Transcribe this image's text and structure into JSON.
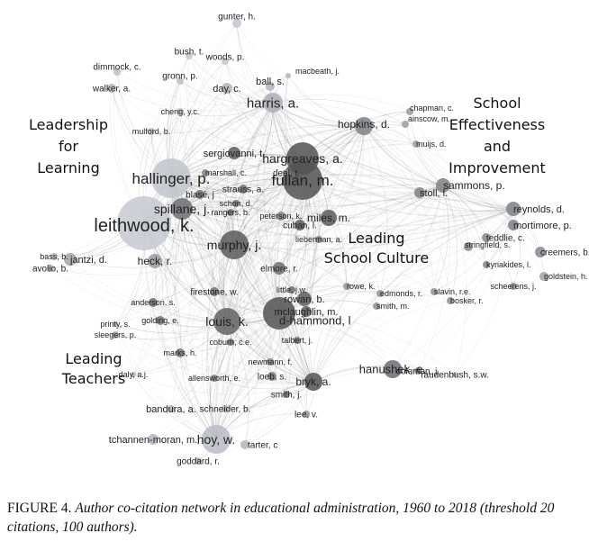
{
  "caption": {
    "figure_number": "FIGURE 4.",
    "text": "Author co-citation network in educational administration, 1960 to 2018 (threshold 20 citations, 100 authors)."
  },
  "colors": {
    "edge": "#8c8c8c",
    "node_dark": "#3a3a3a",
    "node_light": "#d8dde6"
  },
  "clusters": [
    {
      "id": "leadership-for-learning",
      "lines": [
        "Leadership",
        "for",
        "Learning"
      ]
    },
    {
      "id": "school-effectiveness",
      "lines": [
        "School",
        "Effectiveness",
        "and",
        "Improvement"
      ]
    },
    {
      "id": "leading-school-culture",
      "lines": [
        "Leading",
        "School Culture"
      ]
    },
    {
      "id": "leading-teachers",
      "lines": [
        "Leading",
        "Teachers"
      ]
    }
  ],
  "authors": [
    "gunter, h.",
    "bush, t.",
    "woods, p.",
    "dimmock, c.",
    "gronn, p.",
    "macbeath, j.",
    "walker, a.",
    "day, c.",
    "ball, s.",
    "harris, a.",
    "chapman, c.",
    "ainscow, m.",
    "hopkins, d.",
    "cheng, y.c.",
    "mulford, b.",
    "muijs, d.",
    "sergiovanni, t.",
    "hargreaves, a.",
    "hallinger, p.",
    "fullan, m.",
    "marshall, c.",
    "deal, t.",
    "blasé, j",
    "strauss, a.",
    "schon, d.",
    "spillane, j.",
    "rangers, b.",
    "sammons, p.",
    "stoll, l.",
    "peterson, k.",
    "cuban, l.",
    "miles, m.",
    "leithwood, k.",
    "lieberman, a.",
    "reynolds, d.",
    "mortimore, p.",
    "teddlie, c.",
    "stringfield, s.",
    "creemers, b.",
    "kyriakides, l.",
    "goldstein, h.",
    "bass, b.",
    "jantzi, d.",
    "murphy, j.",
    "heck, r.",
    "avolio, b.",
    "elmore, r.",
    "rowe, k.",
    "slavin, r.e.",
    "scheerens, j.",
    "anderson, s.",
    "firestone, w.",
    "little, j.w.",
    "rowan, b.",
    "edmonds, r.",
    "smith, m.",
    "bosker, r.",
    "printy, s.",
    "louis, k.",
    "mclaughlin, m.",
    "sleegers, p.",
    "golding, e.",
    "d-hammond, l",
    "coburn, c.e.",
    "talbert, j.",
    "marks, h.",
    "raudenbush, s.w.",
    "daly, a.j.",
    "newmann, f.",
    "hanushek, e.",
    "coleman, j.",
    "allensworth, e.",
    "loeb, s.",
    "bryk, a.",
    "smith, j.",
    "bandura, a.",
    "schneider, b.",
    "lee, v.",
    "tchannen-moran, m.",
    "hoy, w.",
    "tarter, c",
    "goddard, r."
  ]
}
